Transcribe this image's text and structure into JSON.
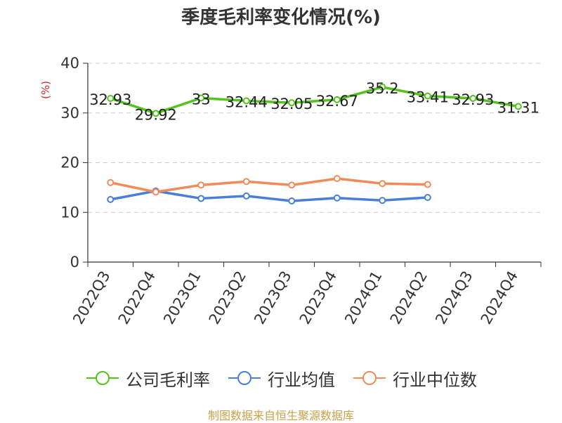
{
  "chart_data": {
    "type": "line",
    "title": "季度毛利率变化情况(%)",
    "ylabel": "(%)",
    "xlabel": "",
    "categories": [
      "2022Q3",
      "2022Q4",
      "2023Q1",
      "2023Q2",
      "2023Q3",
      "2023Q4",
      "2024Q1",
      "2024Q2",
      "2024Q3",
      "2024Q4"
    ],
    "ylim": [
      0,
      40
    ],
    "yticks": [
      0,
      10,
      20,
      30,
      40
    ],
    "grid": true,
    "legend_position": "bottom",
    "series": [
      {
        "name": "公司毛利率",
        "color": "#52c41a",
        "values": [
          32.93,
          29.92,
          33,
          32.44,
          32.05,
          32.67,
          35.2,
          33.41,
          32.93,
          31.31
        ],
        "labels": [
          "32.93",
          "29.92",
          "33",
          "32.44",
          "32.05",
          "32.67",
          "35.2",
          "33.41",
          "32.93",
          "31.31"
        ]
      },
      {
        "name": "行业均值",
        "color": "#4a7fd8",
        "values": [
          12.6,
          14.3,
          12.8,
          13.3,
          12.3,
          12.9,
          12.4,
          13.0,
          null,
          null
        ]
      },
      {
        "name": "行业中位数",
        "color": "#f08c5a",
        "values": [
          16.0,
          14.1,
          15.5,
          16.2,
          15.5,
          16.8,
          15.8,
          15.6,
          null,
          null
        ]
      }
    ]
  },
  "source_text": "制图数据来自恒生聚源数据库"
}
